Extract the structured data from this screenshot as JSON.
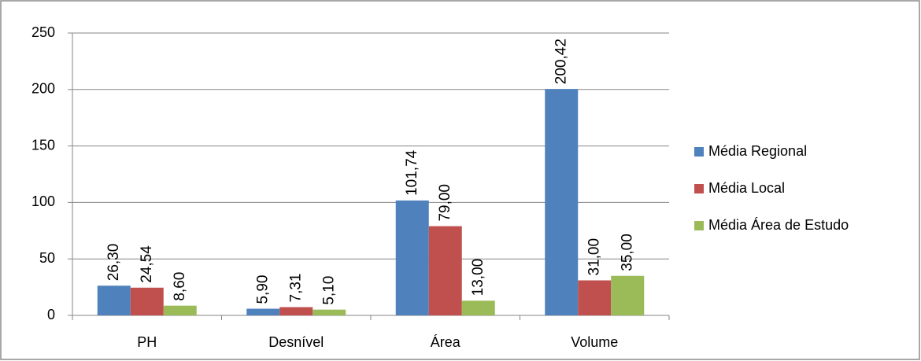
{
  "chart_data": {
    "type": "bar",
    "categories": [
      "PH",
      "Desnível",
      "Área",
      "Volume"
    ],
    "series": [
      {
        "name": "Média Regional",
        "color": "#4f81bd",
        "values": [
          26.3,
          5.9,
          101.74,
          200.42
        ],
        "value_labels": [
          "26,30",
          "5,90",
          "101,74",
          "200,42"
        ]
      },
      {
        "name": "Média Local",
        "color": "#c0504d",
        "values": [
          24.54,
          7.31,
          79.0,
          31.0
        ],
        "value_labels": [
          "24,54",
          "7,31",
          "79,00",
          "31,00"
        ]
      },
      {
        "name": "Média Área de Estudo",
        "color": "#9bbb59",
        "values": [
          8.6,
          5.1,
          13.0,
          35.0
        ],
        "value_labels": [
          "8,60",
          "5,10",
          "13,00",
          "35,00"
        ]
      }
    ],
    "ylim": [
      0,
      250
    ],
    "yticks": [
      0,
      50,
      100,
      150,
      200,
      250
    ],
    "grid": true,
    "legend": "right"
  }
}
